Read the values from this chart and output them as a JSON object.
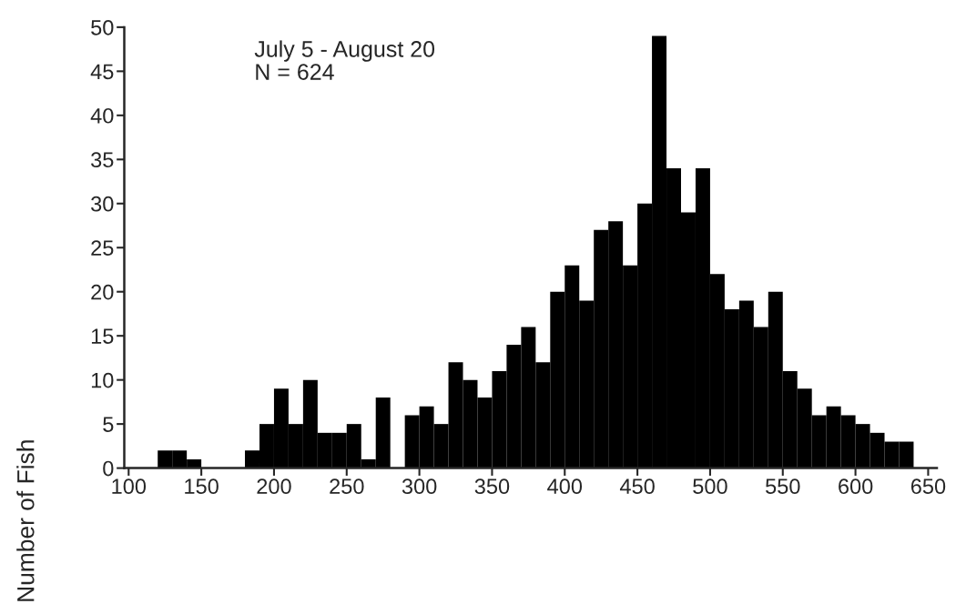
{
  "chart_data": {
    "type": "histogram",
    "ylabel": "Number of Fish",
    "annotations": [
      "July 5 - August 20\nN = 624"
    ],
    "bins": [
      100,
      110,
      120,
      130,
      140,
      150,
      160,
      170,
      180,
      190,
      200,
      210,
      220,
      230,
      240,
      250,
      260,
      270,
      280,
      290,
      300,
      310,
      320,
      330,
      340,
      350,
      360,
      370,
      380,
      390,
      400,
      410,
      420,
      430,
      440,
      450,
      460,
      470,
      480,
      490,
      500,
      510,
      520,
      530,
      540,
      550,
      560,
      570,
      580,
      590,
      600,
      610,
      620,
      630,
      640,
      650
    ],
    "values": [
      0,
      0,
      2,
      2,
      1,
      0,
      0,
      0,
      2,
      5,
      9,
      5,
      10,
      4,
      4,
      5,
      1,
      8,
      0,
      6,
      7,
      5,
      12,
      10,
      8,
      11,
      14,
      16,
      12,
      20,
      23,
      19,
      27,
      28,
      23,
      30,
      49,
      34,
      29,
      34,
      22,
      18,
      19,
      16,
      20,
      11,
      9,
      6,
      7,
      6,
      5,
      4,
      3,
      3,
      0
    ],
    "color": "#000000",
    "xlim": [
      97,
      656
    ],
    "xticks": [
      100,
      150,
      200,
      250,
      300,
      350,
      400,
      450,
      500,
      550,
      600,
      650
    ],
    "ylim": [
      0,
      50
    ],
    "yticks": [
      0,
      5,
      10,
      15,
      20,
      25,
      30,
      35,
      40,
      45,
      50
    ],
    "grid": false
  }
}
